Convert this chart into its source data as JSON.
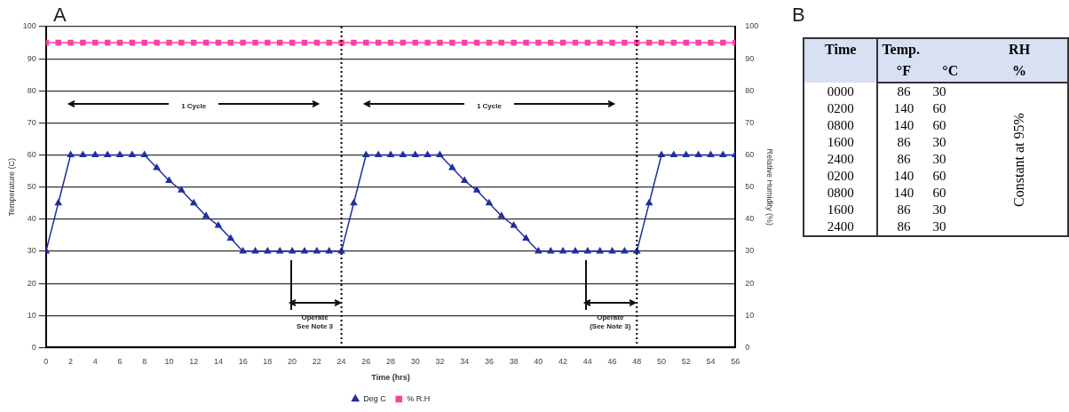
{
  "chart_data": [
    {
      "type": "line",
      "title": "A",
      "xlabel": "Time (hrs)",
      "ylabel": "Temperature (C)",
      "y2label": "Relative Humidity (%)",
      "x": [
        0,
        1,
        2,
        3,
        4,
        5,
        6,
        7,
        8,
        9,
        10,
        11,
        12,
        13,
        14,
        15,
        16,
        17,
        18,
        19,
        20,
        21,
        22,
        23,
        24,
        25,
        26,
        27,
        28,
        29,
        30,
        31,
        32,
        33,
        34,
        35,
        36,
        37,
        38,
        39,
        40,
        41,
        42,
        43,
        44,
        45,
        46,
        47,
        48,
        49,
        50,
        51,
        52,
        53,
        54,
        55,
        56
      ],
      "series": [
        {
          "name": "Deg C",
          "color": "#1f2f9e",
          "marker": "triangle",
          "values": [
            30,
            45,
            60,
            60,
            60,
            60,
            60,
            60,
            60,
            56,
            52,
            49,
            45,
            41,
            38,
            34,
            30,
            30,
            30,
            30,
            30,
            30,
            30,
            30,
            30,
            45,
            60,
            60,
            60,
            60,
            60,
            60,
            60,
            56,
            52,
            49,
            45,
            41,
            38,
            34,
            30,
            30,
            30,
            30,
            30,
            30,
            30,
            30,
            30,
            45,
            60,
            60,
            60,
            60,
            60,
            60,
            60
          ]
        },
        {
          "name": "% R.H",
          "color": "#ff3fa0",
          "marker": "square",
          "axis": "y2",
          "values": [
            95,
            95,
            95,
            95,
            95,
            95,
            95,
            95,
            95,
            95,
            95,
            95,
            95,
            95,
            95,
            95,
            95,
            95,
            95,
            95,
            95,
            95,
            95,
            95,
            95,
            95,
            95,
            95,
            95,
            95,
            95,
            95,
            95,
            95,
            95,
            95,
            95,
            95,
            95,
            95,
            95,
            95,
            95,
            95,
            95,
            95,
            95,
            95,
            95,
            95,
            95,
            95,
            95,
            95,
            95,
            95,
            95
          ]
        }
      ],
      "xlim": [
        0,
        56
      ],
      "xticks": [
        0,
        2,
        4,
        6,
        8,
        10,
        12,
        14,
        16,
        18,
        20,
        22,
        24,
        26,
        28,
        30,
        32,
        34,
        36,
        38,
        40,
        42,
        44,
        46,
        48,
        50,
        52,
        54,
        56
      ],
      "ylim": [
        0,
        100
      ],
      "yticks": [
        0,
        10,
        20,
        30,
        40,
        50,
        60,
        70,
        80,
        90,
        100
      ],
      "y2lim": [
        0,
        100
      ],
      "y2ticks": [
        0,
        10,
        20,
        30,
        40,
        50,
        60,
        70,
        80,
        90,
        100
      ],
      "grid": "y",
      "legend": "bottom",
      "line_style": "solid",
      "ref_lines": [
        {
          "axis": "x",
          "value": 24,
          "color": "#000000",
          "line_style": "dotted"
        },
        {
          "axis": "x",
          "value": 48,
          "color": "#000000",
          "line_style": "dotted"
        }
      ],
      "annotations": [
        "1 Cycle",
        "1 Cycle",
        "Operate\nSee Note 3",
        "Operate\n(See Note 3)"
      ]
    },
    {
      "type": "other",
      "title": "B",
      "annotations": [
        "Time",
        "Temp.",
        "RH",
        "°F",
        "°C",
        "%",
        "0000",
        "86",
        "30",
        "0200",
        "140",
        "60",
        "0800",
        "140",
        "60",
        "1600",
        "86",
        "30",
        "2400",
        "86",
        "30",
        "0200",
        "140",
        "60",
        "0800",
        "140",
        "60",
        "1600",
        "86",
        "30",
        "2400",
        "86",
        "30",
        "Constant at 95%"
      ]
    }
  ]
}
